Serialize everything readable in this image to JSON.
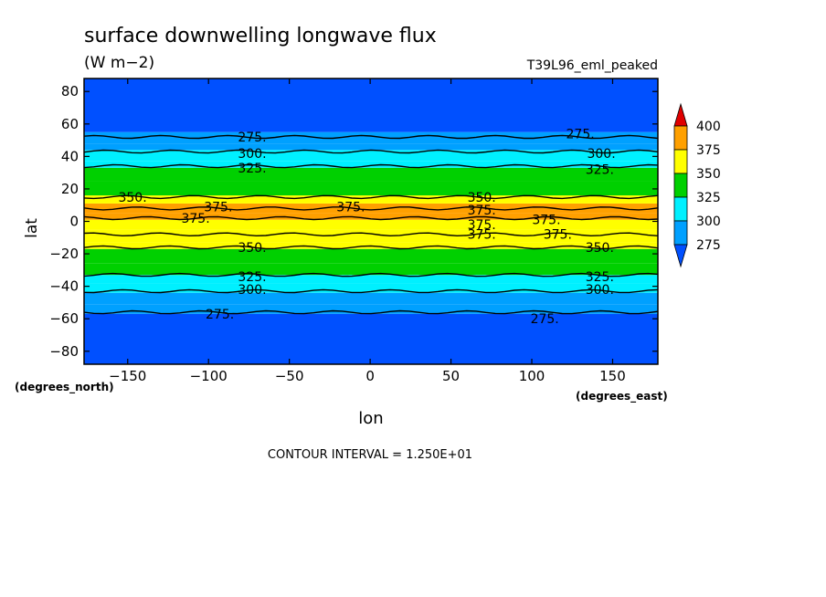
{
  "chart_data": {
    "type": "heatmap",
    "title": "surface downwelling longwave flux",
    "units": "(W m−2)",
    "dataset": "T39L96_eml_peaked",
    "xlabel": "lon",
    "ylabel": "lat",
    "x_units": "(degrees_east)",
    "y_units": "(degrees_north)",
    "xlim": [
      -177,
      178
    ],
    "ylim": [
      -88,
      88
    ],
    "x_ticks": [
      -150,
      -100,
      -50,
      0,
      50,
      100,
      150
    ],
    "x_tick_labels": [
      "−150",
      "−100",
      "−50",
      "0",
      "50",
      "100",
      "150"
    ],
    "y_ticks": [
      -80,
      -60,
      -40,
      -20,
      0,
      20,
      40,
      60,
      80
    ],
    "y_tick_labels": [
      "−80",
      "−60",
      "−40",
      "−20",
      "0",
      "20",
      "40",
      "60",
      "80"
    ],
    "footer": "CONTOUR INTERVAL = 1.250E+01",
    "colorbar": {
      "levels": [
        275,
        300,
        325,
        350,
        375,
        400
      ],
      "labels": [
        "275",
        "300",
        "325",
        "350",
        "375",
        "400"
      ],
      "colors": [
        "#0050ff",
        "#00a0ff",
        "#00f0ff",
        "#00d000",
        "#ffff00",
        "#ffa000",
        "#e00000"
      ]
    },
    "zonal_bands": [
      {
        "lat_min": -88,
        "lat_max": -57,
        "band": 0
      },
      {
        "lat_min": -57,
        "lat_max": -51,
        "band": 1
      },
      {
        "lat_min": -51,
        "lat_max": -44,
        "band": 1
      },
      {
        "lat_min": -44,
        "lat_max": -38,
        "band": 2
      },
      {
        "lat_min": -38,
        "lat_max": -33,
        "band": 2
      },
      {
        "lat_min": -33,
        "lat_max": -26,
        "band": 3
      },
      {
        "lat_min": -26,
        "lat_max": -17,
        "band": 3
      },
      {
        "lat_min": -17,
        "lat_max": -13,
        "band": 4
      },
      {
        "lat_min": -13,
        "lat_max": -5,
        "band": 4
      },
      {
        "lat_min": -5,
        "lat_max": 1,
        "band": 4
      },
      {
        "lat_min": 1,
        "lat_max": 5,
        "band": 5
      },
      {
        "lat_min": 5,
        "lat_max": 11,
        "band": 5
      },
      {
        "lat_min": 11,
        "lat_max": 16,
        "band": 4
      },
      {
        "lat_min": 16,
        "lat_max": 25,
        "band": 3
      },
      {
        "lat_min": 25,
        "lat_max": 33,
        "band": 3
      },
      {
        "lat_min": 33,
        "lat_max": 37,
        "band": 2
      },
      {
        "lat_min": 37,
        "lat_max": 44,
        "band": 2
      },
      {
        "lat_min": 44,
        "lat_max": 48,
        "band": 1
      },
      {
        "lat_min": 48,
        "lat_max": 55,
        "band": 1
      },
      {
        "lat_min": 55,
        "lat_max": 88,
        "band": 0
      }
    ],
    "contours": [
      {
        "lat": -56,
        "label": "275."
      },
      {
        "lat": -43,
        "label": "300."
      },
      {
        "lat": -33,
        "label": "325."
      },
      {
        "lat": -16,
        "label": "350."
      },
      {
        "lat": -8,
        "label": "375."
      },
      {
        "lat": 2,
        "label": "375."
      },
      {
        "lat": 8,
        "label": "375."
      },
      {
        "lat": 15,
        "label": "350."
      },
      {
        "lat": 34,
        "label": "325."
      },
      {
        "lat": 43,
        "label": "300."
      },
      {
        "lat": 52,
        "label": "275."
      }
    ],
    "contour_labels": [
      {
        "lon": -73,
        "lat": 52,
        "text": "275."
      },
      {
        "lon": -73,
        "lat": 42,
        "text": "300."
      },
      {
        "lon": -73,
        "lat": 33,
        "text": "325."
      },
      {
        "lon": 130,
        "lat": 54,
        "text": "275."
      },
      {
        "lon": 143,
        "lat": 42,
        "text": "300."
      },
      {
        "lon": 142,
        "lat": 32,
        "text": "325."
      },
      {
        "lon": -147,
        "lat": 15,
        "text": "350."
      },
      {
        "lon": -94,
        "lat": 9,
        "text": "375."
      },
      {
        "lon": -108,
        "lat": 2,
        "text": "375."
      },
      {
        "lon": -12,
        "lat": 9,
        "text": "375."
      },
      {
        "lon": 69,
        "lat": 15,
        "text": "350."
      },
      {
        "lon": 69,
        "lat": 7,
        "text": "375."
      },
      {
        "lon": 69,
        "lat": -2,
        "text": "375."
      },
      {
        "lon": 69,
        "lat": -8,
        "text": "375."
      },
      {
        "lon": 109,
        "lat": 1,
        "text": "375."
      },
      {
        "lon": 116,
        "lat": -8,
        "text": "375."
      },
      {
        "lon": -73,
        "lat": -16,
        "text": "350."
      },
      {
        "lon": -73,
        "lat": -34,
        "text": "325."
      },
      {
        "lon": -73,
        "lat": -42,
        "text": "300."
      },
      {
        "lon": 142,
        "lat": -16,
        "text": "350."
      },
      {
        "lon": 142,
        "lat": -34,
        "text": "325."
      },
      {
        "lon": 142,
        "lat": -42,
        "text": "300."
      },
      {
        "lon": -93,
        "lat": -57,
        "text": "275."
      },
      {
        "lon": 108,
        "lat": -60,
        "text": "275."
      }
    ]
  }
}
